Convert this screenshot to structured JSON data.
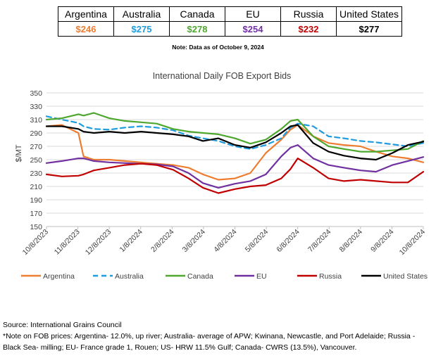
{
  "table": {
    "headers": [
      "Argentina",
      "Australia",
      "Canada",
      "EU",
      "Russia",
      "United States"
    ],
    "values": [
      "$246",
      "$275",
      "$278",
      "$254",
      "$232",
      "$277"
    ],
    "value_colors": [
      "#ED7D31",
      "#1F9BDE",
      "#4EA72E",
      "#7030A0",
      "#C00000",
      "#000000"
    ],
    "note": "Note: Data as of October 9, 2024"
  },
  "source": {
    "line1": "Source: International Grains Council",
    "line2": "*Note on FOB prices: Argentina- 12.0%, up river; Australia- average of APW; Kwinana, Newcastle, and Port Adelaide; Russia - Black Sea- milling; EU- France grade 1, Rouen; US- HRW 11.5% Gulf; Canada- CWRS (13.5%), Vancouver."
  },
  "chart_data": {
    "type": "line",
    "title": "International Daily FOB Export Bids",
    "ylabel": "$/MT",
    "xlabel": "",
    "ylim": [
      150,
      350
    ],
    "yticks": [
      150,
      170,
      190,
      210,
      230,
      250,
      270,
      290,
      310,
      330,
      350
    ],
    "xticks": [
      "10/8/2023",
      "11/8/2023",
      "12/8/2023",
      "1/8/2024",
      "2/8/2024",
      "3/8/2024",
      "4/8/2024",
      "5/8/2024",
      "6/8/2024",
      "7/8/2024",
      "8/8/2024",
      "9/8/2024",
      "10/8/2024"
    ],
    "legend_position": "bottom",
    "x": [
      "2023-10-08",
      "2023-10-23",
      "2023-11-08",
      "2023-11-13",
      "2023-11-23",
      "2023-12-08",
      "2023-12-23",
      "2024-01-08",
      "2024-01-23",
      "2024-02-08",
      "2024-02-23",
      "2024-03-08",
      "2024-03-23",
      "2024-04-08",
      "2024-04-23",
      "2024-05-08",
      "2024-05-23",
      "2024-06-01",
      "2024-06-08",
      "2024-06-23",
      "2024-07-08",
      "2024-07-23",
      "2024-08-08",
      "2024-08-23",
      "2024-09-08",
      "2024-09-23",
      "2024-10-08"
    ],
    "series": [
      {
        "name": "Argentina",
        "color": "#ED7D31",
        "dash": "solid",
        "values": [
          300,
          302,
          290,
          255,
          250,
          250,
          248,
          246,
          244,
          242,
          238,
          228,
          220,
          222,
          230,
          260,
          280,
          295,
          302,
          285,
          275,
          272,
          270,
          262,
          255,
          252,
          246
        ]
      },
      {
        "name": "Australia",
        "color": "#1F9BDE",
        "dash": "dash",
        "values": [
          315,
          310,
          305,
          300,
          296,
          295,
          298,
          300,
          298,
          294,
          286,
          282,
          278,
          270,
          266,
          272,
          282,
          298,
          304,
          300,
          285,
          282,
          278,
          276,
          273,
          270,
          275
        ]
      },
      {
        "name": "Canada",
        "color": "#4EA72E",
        "dash": "solid",
        "values": [
          310,
          312,
          318,
          316,
          320,
          312,
          308,
          306,
          304,
          296,
          292,
          290,
          288,
          282,
          274,
          280,
          296,
          308,
          310,
          285,
          270,
          266,
          262,
          262,
          264,
          266,
          278
        ]
      },
      {
        "name": "EU",
        "color": "#7030A0",
        "dash": "solid",
        "values": [
          245,
          248,
          252,
          252,
          248,
          246,
          245,
          244,
          243,
          240,
          230,
          215,
          208,
          214,
          218,
          228,
          255,
          268,
          272,
          252,
          242,
          238,
          234,
          232,
          242,
          248,
          254
        ]
      },
      {
        "name": "Russia",
        "color": "#C00000",
        "dash": "solid",
        "values": [
          228,
          225,
          226,
          228,
          234,
          238,
          242,
          244,
          242,
          235,
          222,
          208,
          200,
          206,
          210,
          212,
          222,
          236,
          252,
          238,
          222,
          218,
          220,
          218,
          216,
          216,
          232
        ]
      },
      {
        "name": "United States",
        "color": "#000000",
        "dash": "solid",
        "values": [
          300,
          300,
          296,
          292,
          290,
          292,
          290,
          292,
          290,
          288,
          285,
          278,
          282,
          272,
          268,
          276,
          290,
          300,
          302,
          275,
          262,
          256,
          252,
          250,
          260,
          272,
          277
        ]
      }
    ]
  }
}
